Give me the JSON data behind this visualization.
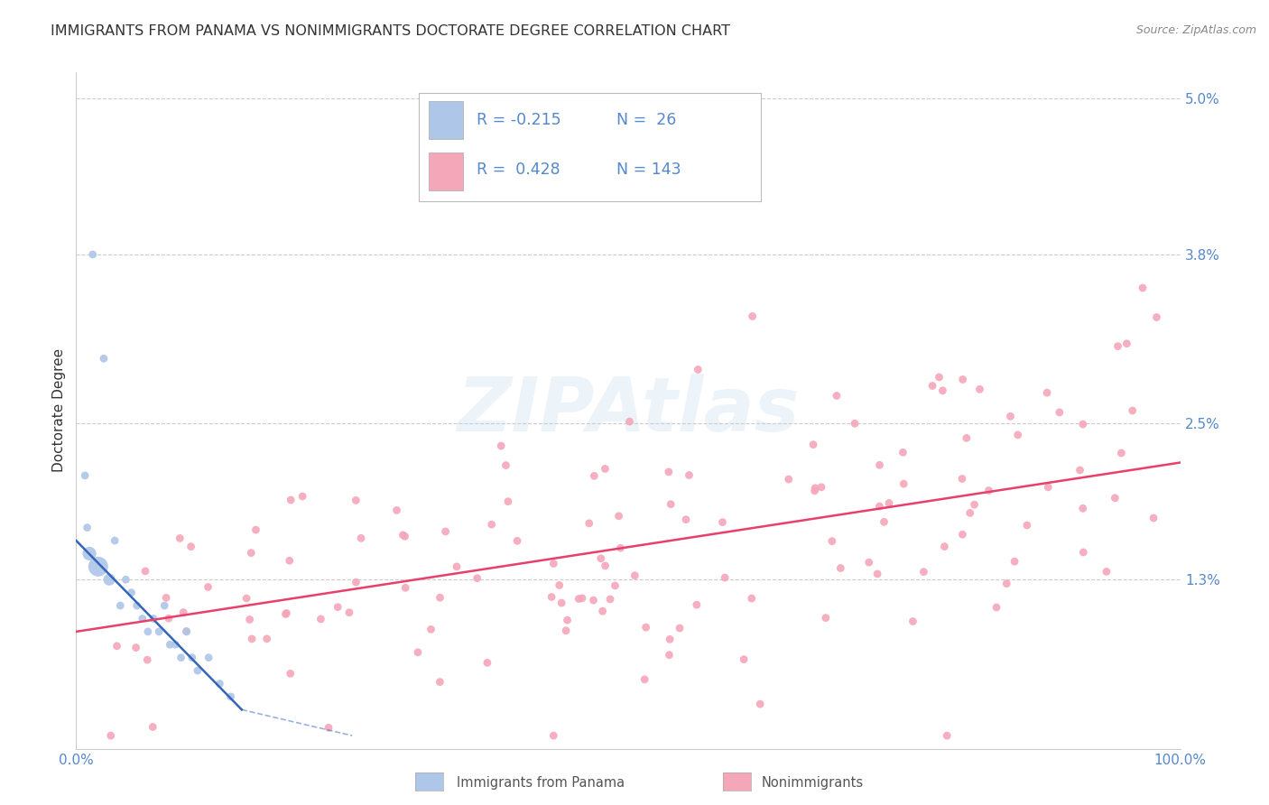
{
  "title": "IMMIGRANTS FROM PANAMA VS NONIMMIGRANTS DOCTORATE DEGREE CORRELATION CHART",
  "source": "Source: ZipAtlas.com",
  "ylabel": "Doctorate Degree",
  "legend_entries": [
    {
      "label": "Immigrants from Panama",
      "color": "#aec6e8",
      "R": -0.215,
      "N": 26
    },
    {
      "label": "Nonimmigrants",
      "color": "#f4a7b9",
      "R": 0.428,
      "N": 143
    }
  ],
  "blue_x": [
    1.5,
    2.5,
    0.8,
    1.0,
    1.2,
    2.0,
    3.0,
    3.5,
    4.0,
    4.5,
    5.0,
    5.5,
    6.0,
    6.5,
    7.0,
    7.5,
    8.0,
    8.5,
    9.0,
    9.5,
    10.0,
    10.5,
    11.0,
    12.0,
    13.0,
    14.0
  ],
  "blue_y": [
    0.038,
    0.03,
    0.021,
    0.017,
    0.015,
    0.014,
    0.013,
    0.016,
    0.011,
    0.013,
    0.012,
    0.011,
    0.01,
    0.009,
    0.01,
    0.009,
    0.011,
    0.008,
    0.008,
    0.007,
    0.009,
    0.007,
    0.006,
    0.007,
    0.005,
    0.004
  ],
  "blue_sizes": [
    40,
    40,
    40,
    40,
    120,
    250,
    90,
    40,
    40,
    40,
    40,
    40,
    40,
    40,
    40,
    40,
    40,
    40,
    40,
    40,
    40,
    40,
    40,
    40,
    40,
    40
  ],
  "blue_line_x": [
    0,
    15
  ],
  "blue_line_y": [
    0.016,
    0.003
  ],
  "pink_line_x": [
    0,
    100
  ],
  "pink_line_y": [
    0.009,
    0.022
  ],
  "xlim": [
    0,
    100
  ],
  "ylim": [
    0.0,
    0.052
  ],
  "ytick_vals": [
    0.013,
    0.025,
    0.038,
    0.05
  ],
  "ytick_labels": [
    "1.3%",
    "2.5%",
    "3.8%",
    "5.0%"
  ],
  "blue_color": "#aec6e8",
  "pink_color": "#f4a7b9",
  "blue_line_color": "#3366bb",
  "pink_line_color": "#e8406a",
  "background_color": "#ffffff",
  "grid_color": "#cccccc",
  "watermark": "ZIPAtlas",
  "tick_color": "#5588cc",
  "text_color": "#333333"
}
